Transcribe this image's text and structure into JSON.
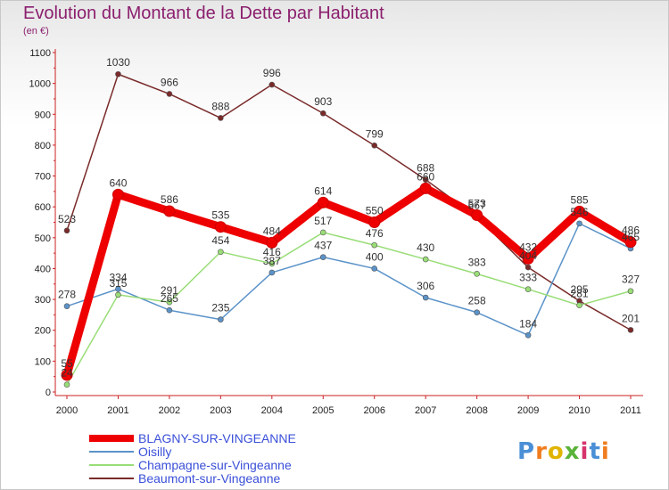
{
  "title": "Evolution du Montant de la Dette par Habitant",
  "unit": "(en €)",
  "logo": "Proxiti",
  "chart_data": {
    "type": "line",
    "title": "Evolution du Montant de la Dette par Habitant",
    "ylabel": "(en €)",
    "ylim": [
      0,
      1100
    ],
    "yticks": [
      0,
      100,
      200,
      300,
      400,
      500,
      600,
      700,
      800,
      900,
      1000,
      1100
    ],
    "x": [
      "2000",
      "2001",
      "2002",
      "2003",
      "2004",
      "2005",
      "2006",
      "2007",
      "2008",
      "2009",
      "2010",
      "2011"
    ],
    "grid": false,
    "legend_position": "bottom-left",
    "series": [
      {
        "name": "BLAGNY-SUR-VINGEANNE",
        "color": "#ee0000",
        "values": [
          55,
          640,
          586,
          535,
          484,
          614,
          550,
          660,
          573,
          432,
          585,
          486
        ]
      },
      {
        "name": "Oisilly",
        "color": "#5b93c9",
        "values": [
          278,
          334,
          265,
          235,
          387,
          437,
          400,
          306,
          258,
          184,
          546,
          465
        ]
      },
      {
        "name": "Champagne-sur-Vingeanne",
        "color": "#99dd77",
        "values": [
          24,
          315,
          291,
          454,
          416,
          517,
          476,
          430,
          383,
          333,
          281,
          327
        ]
      },
      {
        "name": "Beaumont-sur-Vingeanne",
        "color": "#7a2a2a",
        "values": [
          523,
          1030,
          966,
          888,
          996,
          903,
          799,
          688,
          567,
          404,
          295,
          201
        ]
      }
    ]
  }
}
